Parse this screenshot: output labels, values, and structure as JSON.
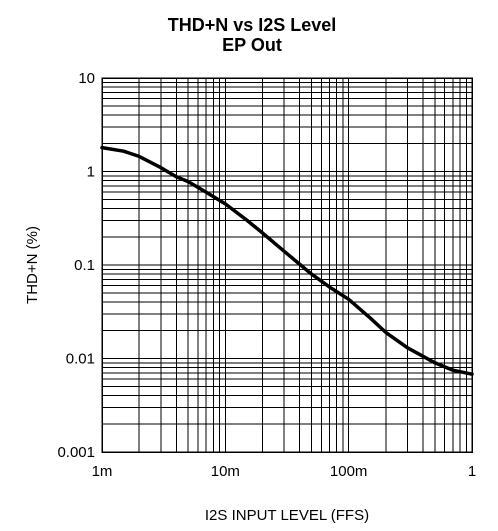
{
  "chart_data": {
    "type": "line",
    "title": "THD+N vs I2S Level",
    "subtitle": "EP Out",
    "xlabel": "I2S INPUT LEVEL (FFS)",
    "ylabel": "THD+N (%)",
    "xscale": "log",
    "yscale": "log",
    "xlim": [
      0.001,
      1
    ],
    "ylim": [
      0.001,
      10
    ],
    "x_ticks": [
      "1m",
      "10m",
      "100m",
      "1"
    ],
    "y_ticks": [
      "10",
      "1",
      "0.1",
      "0.01",
      "0.001"
    ],
    "grid": true,
    "series": [
      {
        "x": [
          0.001,
          0.0015,
          0.002,
          0.003,
          0.004,
          0.005,
          0.007,
          0.01,
          0.015,
          0.02,
          0.03,
          0.05,
          0.07,
          0.1,
          0.15,
          0.2,
          0.3,
          0.5,
          0.7,
          1.0
        ],
        "values": [
          1.8,
          1.65,
          1.45,
          1.1,
          0.88,
          0.78,
          0.6,
          0.45,
          0.3,
          0.22,
          0.14,
          0.08,
          0.058,
          0.043,
          0.027,
          0.019,
          0.013,
          0.009,
          0.0075,
          0.0068
        ]
      }
    ]
  }
}
